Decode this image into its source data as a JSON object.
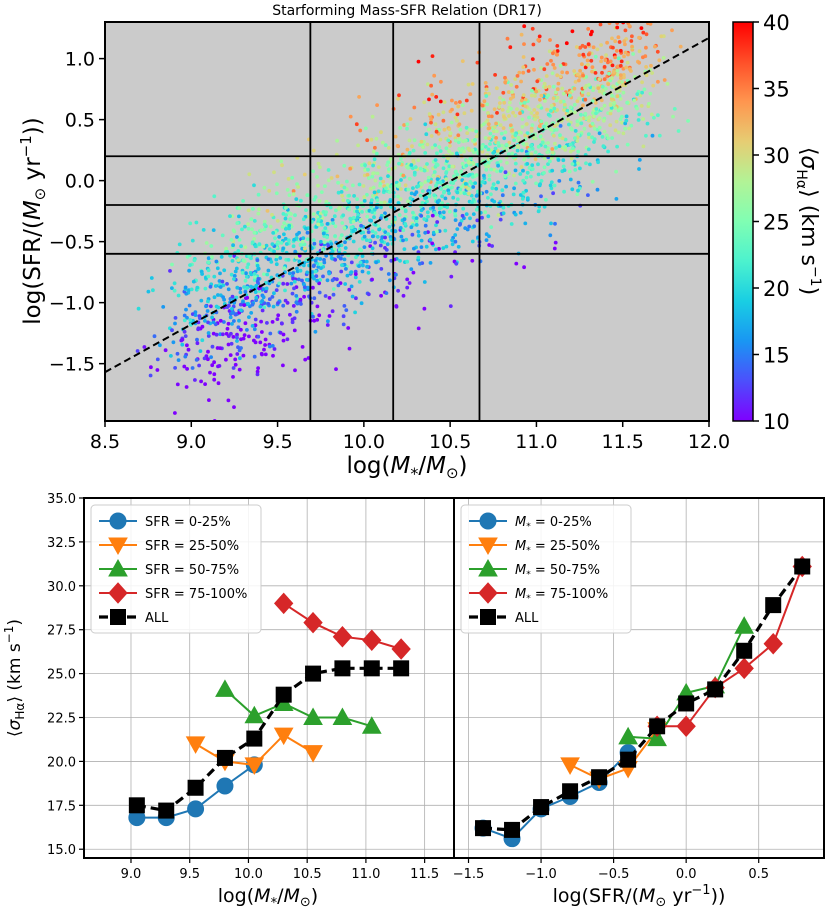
{
  "figure": {
    "title": "Starforming Mass-SFR Relation (DR17)"
  },
  "chart_data": [
    {
      "type": "scatter",
      "title": "Starforming Mass-SFR Relation (DR17)",
      "xlabel": "log(M*/M⊙)",
      "ylabel": "log(SFR/(M⊙ yr⁻¹))",
      "xlim": [
        8.5,
        12.0
      ],
      "ylim": [
        -1.97,
        1.3
      ],
      "xticks": [
        "8.5",
        "9.0",
        "9.5",
        "10.0",
        "10.5",
        "11.0",
        "11.5",
        "12.0"
      ],
      "yticks": [
        "1.0",
        "0.5",
        "0.0",
        "-0.5",
        "-1.0",
        "-1.5"
      ],
      "background": "#cbcbcb",
      "colorbar": {
        "label": "⟨σHα⟩ (km s⁻¹)",
        "range": [
          10,
          40
        ],
        "ticks": [
          "10",
          "15",
          "20",
          "25",
          "30",
          "35",
          "40"
        ],
        "colormap": "rainbow"
      },
      "vertical_lines_x": [
        9.69,
        10.17,
        10.67
      ],
      "horizontal_lines_y": [
        0.2,
        -0.2,
        -0.6
      ],
      "fit_line": {
        "x": [
          8.5,
          12.0
        ],
        "y": [
          -1.57,
          1.17
        ],
        "style": "dashed"
      },
      "population": {
        "count": 2600,
        "slope": 0.78,
        "pivot_x": 10.2,
        "pivot_y": -0.2,
        "scatter_dex": 0.35
      }
    },
    {
      "type": "line",
      "xlabel": "log(M*/M⊙)",
      "ylabel": "⟨σHα⟩ (km s⁻¹)",
      "xlim": [
        8.6,
        11.75
      ],
      "ylim": [
        14.5,
        35.0
      ],
      "xticks": [
        "9.0",
        "9.5",
        "10.0",
        "10.5",
        "11.0",
        "11.5"
      ],
      "yticks": [
        "15.0",
        "17.5",
        "20.0",
        "22.5",
        "25.0",
        "27.5",
        "30.0",
        "32.5",
        "35.0"
      ],
      "grid": true,
      "legend_position": "top-left",
      "series": [
        {
          "name": "SFR = 0-25%",
          "color": "#1f77b4",
          "marker": "circle",
          "x": [
            9.05,
            9.3,
            9.55,
            9.8,
            10.05
          ],
          "y": [
            16.8,
            16.8,
            17.3,
            18.6,
            19.8
          ]
        },
        {
          "name": "SFR = 25-50%",
          "color": "#ff7f0e",
          "marker": "triangle-down",
          "x": [
            9.55,
            9.8,
            10.05,
            10.3,
            10.55
          ],
          "y": [
            21.0,
            20.0,
            19.8,
            21.5,
            20.5
          ]
        },
        {
          "name": "SFR = 50-75%",
          "color": "#2ca02c",
          "marker": "triangle-up",
          "x": [
            9.8,
            10.05,
            10.3,
            10.55,
            10.8,
            11.05
          ],
          "y": [
            24.1,
            22.6,
            23.3,
            22.5,
            22.5,
            22.0
          ]
        },
        {
          "name": "SFR = 75-100%",
          "color": "#d62728",
          "marker": "diamond",
          "x": [
            10.3,
            10.55,
            10.8,
            11.05,
            11.3
          ],
          "y": [
            29.0,
            27.9,
            27.1,
            26.9,
            26.4
          ]
        },
        {
          "name": "ALL",
          "color": "#000000",
          "marker": "square",
          "dashed": true,
          "x": [
            9.05,
            9.3,
            9.55,
            9.8,
            10.05,
            10.3,
            10.55,
            10.8,
            11.05,
            11.3
          ],
          "y": [
            17.5,
            17.2,
            18.5,
            20.2,
            21.3,
            23.8,
            25.0,
            25.3,
            25.3,
            25.3
          ]
        }
      ]
    },
    {
      "type": "line",
      "xlabel": "log(SFR/(M⊙ yr⁻¹))",
      "xlim": [
        -1.6,
        0.95
      ],
      "ylim": [
        14.5,
        35.0
      ],
      "xticks": [
        "−1.5",
        "−1.0",
        "−0.5",
        "0.0",
        "0.5"
      ],
      "grid": true,
      "legend_position": "top-left",
      "series": [
        {
          "name": "M* = 0-25%",
          "color": "#1f77b4",
          "marker": "circle",
          "x": [
            -1.4,
            -1.2,
            -1.0,
            -0.8,
            -0.6,
            -0.4
          ],
          "y": [
            16.2,
            15.6,
            17.3,
            18.0,
            18.8,
            20.5
          ]
        },
        {
          "name": "M* = 25-50%",
          "color": "#ff7f0e",
          "marker": "triangle-down",
          "x": [
            -0.8,
            -0.6,
            -0.4,
            -0.2
          ],
          "y": [
            19.8,
            19.0,
            19.6,
            21.8
          ]
        },
        {
          "name": "M* = 50-75%",
          "color": "#2ca02c",
          "marker": "triangle-up",
          "x": [
            -0.4,
            -0.2,
            0.0,
            0.2,
            0.4
          ],
          "y": [
            21.4,
            21.3,
            23.9,
            24.3,
            27.7
          ]
        },
        {
          "name": "M* = 75-100%",
          "color": "#d62728",
          "marker": "diamond",
          "x": [
            -0.2,
            0.0,
            0.2,
            0.4,
            0.6,
            0.8
          ],
          "y": [
            22.0,
            22.0,
            24.2,
            25.3,
            26.7,
            31.1
          ]
        },
        {
          "name": "ALL",
          "color": "#000000",
          "marker": "square",
          "dashed": true,
          "x": [
            -1.4,
            -1.2,
            -1.0,
            -0.8,
            -0.6,
            -0.4,
            -0.2,
            0.0,
            0.2,
            0.4,
            0.6,
            0.8
          ],
          "y": [
            16.2,
            16.1,
            17.4,
            18.3,
            19.1,
            20.1,
            22.0,
            23.3,
            24.1,
            26.3,
            28.9,
            31.1
          ]
        }
      ]
    }
  ]
}
